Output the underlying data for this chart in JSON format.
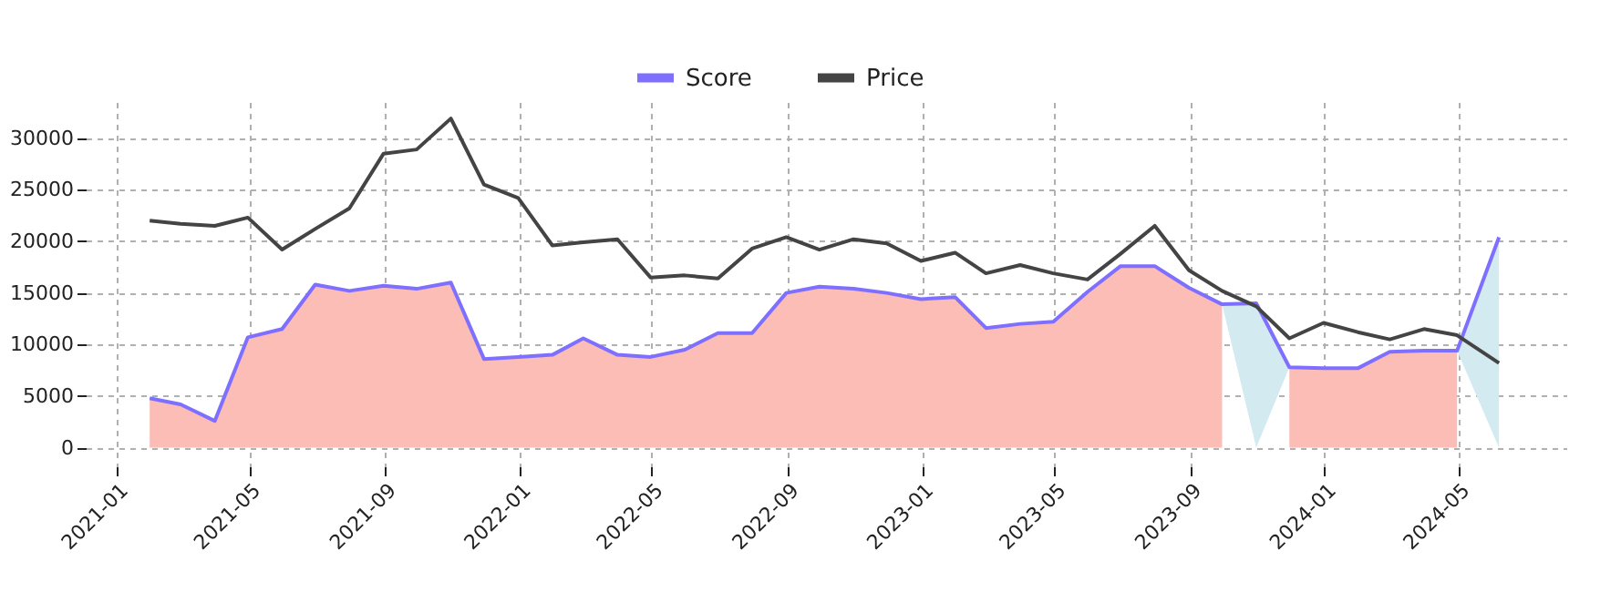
{
  "chart_data": {
    "type": "line",
    "x": [
      "2021-01-31",
      "2021-02-28",
      "2021-03-31",
      "2021-04-30",
      "2021-05-31",
      "2021-06-30",
      "2021-07-31",
      "2021-08-31",
      "2021-09-30",
      "2021-10-31",
      "2021-11-30",
      "2021-12-31",
      "2022-01-31",
      "2022-02-28",
      "2022-03-31",
      "2022-04-30",
      "2022-05-31",
      "2022-06-30",
      "2022-07-31",
      "2022-08-31",
      "2022-09-30",
      "2022-10-31",
      "2022-11-30",
      "2022-12-31",
      "2023-01-31",
      "2023-02-28",
      "2023-03-31",
      "2023-04-30",
      "2023-05-31",
      "2023-06-30",
      "2023-07-31",
      "2023-08-31",
      "2023-09-30",
      "2023-10-31",
      "2023-11-30",
      "2023-12-31",
      "2024-01-31",
      "2024-02-29",
      "2024-03-31",
      "2024-04-30",
      "2024-06-07"
    ],
    "series": [
      {
        "type": "area",
        "color": "#fbbdb6",
        "values": [
          4800,
          4200,
          2600,
          10700,
          11500,
          15800,
          15200,
          15700,
          15400,
          16000,
          8600,
          8800,
          9000,
          10600,
          9000,
          8800,
          9500,
          11100,
          11100,
          15000,
          15600,
          15400,
          15000,
          14400,
          14600,
          11600,
          12000,
          12200,
          15100,
          17600,
          17600,
          15500,
          13900,
          null,
          null,
          null,
          null,
          null,
          null,
          null,
          null
        ]
      },
      {
        "type": "area",
        "color": "#fbbdb6",
        "values": [
          null,
          null,
          null,
          null,
          null,
          null,
          null,
          null,
          null,
          null,
          null,
          null,
          null,
          null,
          null,
          null,
          null,
          null,
          null,
          null,
          null,
          null,
          null,
          null,
          null,
          null,
          null,
          null,
          null,
          null,
          null,
          null,
          null,
          null,
          7800,
          7700,
          7700,
          9300,
          9400,
          9400,
          null
        ]
      },
      {
        "name": "Score",
        "color": "#7f6fff",
        "values": [
          4800,
          4200,
          2600,
          10700,
          11500,
          15800,
          15200,
          15700,
          15400,
          16000,
          8600,
          8800,
          9000,
          10600,
          9000,
          8800,
          9500,
          11100,
          11100,
          15000,
          15600,
          15400,
          15000,
          14400,
          14600,
          11600,
          12000,
          12200,
          15100,
          17600,
          17600,
          15500,
          13900,
          14000,
          7800,
          7700,
          7700,
          9300,
          9400,
          9400,
          20400
        ],
        "lower": [
          null,
          null,
          null,
          null,
          null,
          null,
          null,
          null,
          null,
          null,
          null,
          null,
          null,
          null,
          null,
          null,
          null,
          null,
          null,
          null,
          null,
          null,
          null,
          null,
          null,
          null,
          null,
          null,
          null,
          null,
          null,
          null,
          13900,
          0,
          7800,
          null,
          null,
          null,
          null,
          9400,
          0
        ],
        "upper": [
          null,
          null,
          null,
          null,
          null,
          null,
          null,
          null,
          null,
          null,
          null,
          null,
          null,
          null,
          null,
          null,
          null,
          null,
          null,
          null,
          null,
          null,
          null,
          null,
          null,
          null,
          null,
          null,
          null,
          null,
          null,
          null,
          13900,
          14000,
          7800,
          null,
          null,
          null,
          null,
          9400,
          20400
        ]
      },
      {
        "name": "Price",
        "color": "#444444",
        "values": [
          22000,
          21700,
          21500,
          22300,
          19200,
          21200,
          23200,
          28500,
          28900,
          31900,
          25500,
          24200,
          19600,
          19900,
          20200,
          16500,
          16700,
          16400,
          19300,
          20400,
          19200,
          20200,
          19800,
          18100,
          18900,
          16900,
          17700,
          16900,
          16300,
          18800,
          21500,
          17200,
          15200,
          13700,
          10600,
          12100,
          11200,
          10500,
          11500,
          10900,
          8200
        ]
      }
    ],
    "xlim": [
      "2020-12-04",
      "2024-08-07"
    ],
    "xticks": [
      "2021-01",
      "2021-05",
      "2021-09",
      "2022-01",
      "2022-05",
      "2022-09",
      "2023-01",
      "2023-05",
      "2023-09",
      "2024-01",
      "2024-05"
    ],
    "ylim": [
      -1800,
      33500
    ],
    "yticks": [
      0,
      5000,
      10000,
      15000,
      20000,
      25000,
      30000
    ],
    "grid": true,
    "legend": "top",
    "marker": "none",
    "line_style": "solid"
  }
}
